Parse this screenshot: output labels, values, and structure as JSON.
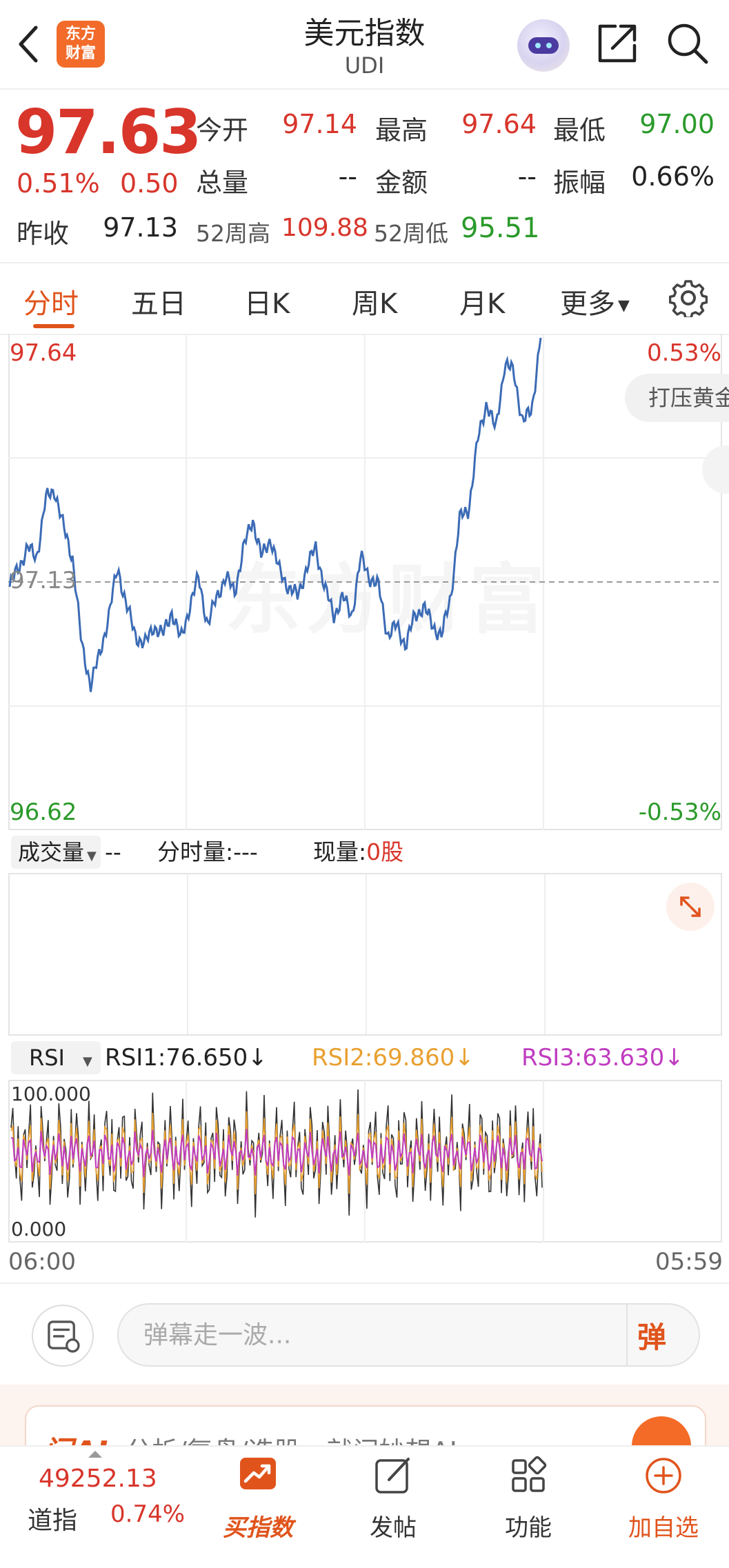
{
  "header": {
    "title": "美元指数",
    "subtitle": "UDI",
    "logo_text_line1": "东方",
    "logo_text_line2": "财富"
  },
  "quote": {
    "price": "97.63",
    "change_pct": "0.51%",
    "change_val": "0.50",
    "open_label": "今开",
    "open": "97.14",
    "high_label": "最高",
    "high": "97.64",
    "low_label": "最低",
    "low": "97.00",
    "volume_label": "总量",
    "volume": "--",
    "amount_label": "金额",
    "amount": "--",
    "amplitude_label": "振幅",
    "amplitude": "0.66%",
    "prev_close_label": "昨收",
    "prev_close": "97.13",
    "wk52_high_label": "52周高",
    "wk52_high": "109.88",
    "wk52_low_label": "52周低",
    "wk52_low": "95.51"
  },
  "tabs": [
    "分时",
    "五日",
    "日K",
    "周K",
    "月K",
    "更多"
  ],
  "chart": {
    "axis_top_left": "97.64",
    "axis_mid_left": "97.13",
    "axis_bottom_left": "96.62",
    "axis_top_right": "0.53%",
    "axis_bottom_right": "-0.53%",
    "pill_text": "打压黄金",
    "watermark": "东方财富"
  },
  "volume": {
    "selector": "成交量",
    "dash": "--",
    "minute_vol": "分时量:---",
    "current_vol_label": "现量:",
    "current_vol": "0股"
  },
  "rsi": {
    "selector": "RSI",
    "rsi1": "RSI1:76.650↓",
    "rsi2": "RSI2:69.860↓",
    "rsi3": "RSI3:63.630↓",
    "axis_top": "100.000",
    "axis_bottom": "0.000",
    "time_start": "06:00",
    "time_end": "05:59"
  },
  "danmaku": {
    "placeholder": "弹幕走一波...",
    "button": "弹"
  },
  "ai_banner": {
    "logo": "问AI",
    "text": "分析/复盘/选股，就问妙想AI"
  },
  "bottom_bar": {
    "index_value": "49252.13",
    "index_name": "道指",
    "index_pct": "0.74%",
    "items": [
      "买指数",
      "发帖",
      "功能",
      "加自选"
    ]
  },
  "colors": {
    "up": "#d8352b",
    "down": "#2a9a2a",
    "accent": "#e0541c",
    "line": "#3b6bb5",
    "rsi2": "#e8a030",
    "rsi3": "#c03cc0"
  },
  "chart_data": {
    "type": "line",
    "x_range": [
      "06:00",
      "05:59"
    ],
    "ylim": [
      96.62,
      97.64
    ],
    "reference": 97.13,
    "series": [
      {
        "values": [
          97.12,
          97.16,
          97.2,
          97.18,
          97.3,
          97.32,
          97.24,
          97.18,
          97.0,
          96.92,
          96.98,
          97.06,
          97.16,
          97.08,
          97.02,
          97.0,
          97.04,
          97.02,
          97.07,
          97.01,
          97.08,
          97.14,
          97.04,
          97.1,
          97.14,
          97.11,
          97.2,
          97.26,
          97.18,
          97.22,
          97.15,
          97.12,
          97.1,
          97.16,
          97.2,
          97.12,
          97.06,
          97.1,
          97.06,
          97.18,
          97.14,
          97.12,
          97.02,
          97.04,
          97.0,
          97.06,
          97.08,
          97.04,
          97.02,
          97.1,
          97.26,
          97.28,
          97.42,
          97.5,
          97.44,
          97.58,
          97.56,
          97.46,
          97.48,
          97.64
        ]
      }
    ]
  }
}
